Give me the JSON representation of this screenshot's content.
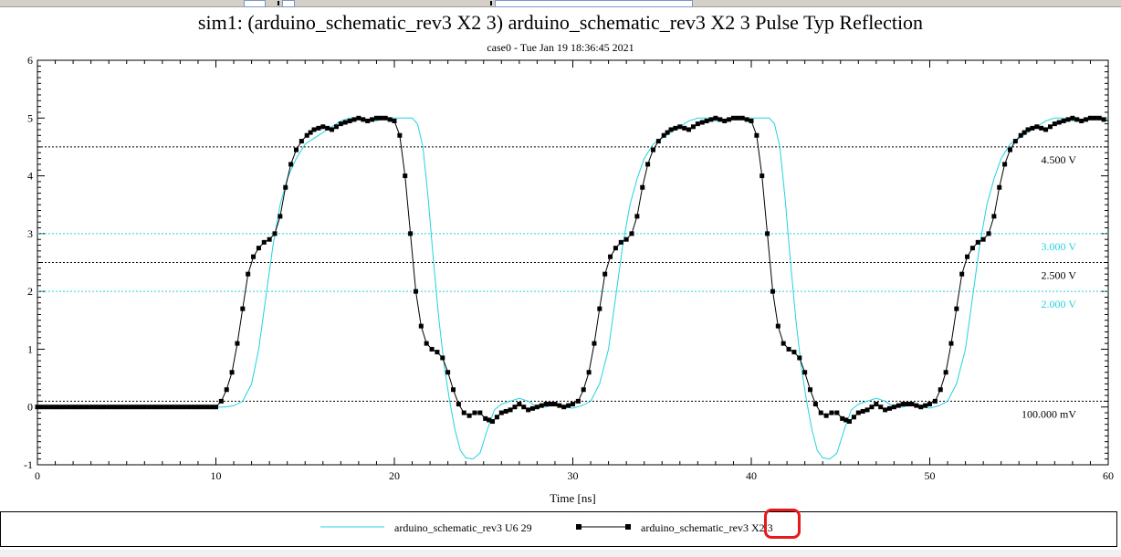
{
  "chart_data": {
    "type": "line",
    "title": "sim1: (arduino_schematic_rev3 X2 3) arduino_schematic_rev3 X2 3 Pulse Typ Reflection",
    "subtitle": "case0 - Tue Jan 19 18:36:45 2021",
    "xlabel": "Time [ns]",
    "ylabel": "",
    "xlim": [
      0,
      60
    ],
    "ylim": [
      -1,
      6
    ],
    "xticks": [
      0,
      10,
      20,
      30,
      40,
      50,
      60
    ],
    "yticks": [
      -1,
      0,
      1,
      2,
      3,
      4,
      5,
      6
    ],
    "grid": false,
    "legend_position": "bottom",
    "thresholds": [
      {
        "value": 4.5,
        "label": "4.500 V",
        "color": "#000000"
      },
      {
        "value": 3.0,
        "label": "3.000 V",
        "color": "#22d3e0"
      },
      {
        "value": 2.5,
        "label": "2.500 V",
        "color": "#000000"
      },
      {
        "value": 2.0,
        "label": "2.000 V",
        "color": "#22d3e0"
      },
      {
        "value": 0.1,
        "label": "100.000 mV",
        "color": "#000000"
      }
    ],
    "series": [
      {
        "name": "arduino_schematic_rev3 U6 29",
        "color": "#22d3e0",
        "marker": "none",
        "x": [
          0,
          10,
          10.5,
          11,
          11.5,
          12,
          12.4,
          12.8,
          13.2,
          13.6,
          14.0,
          14.5,
          15.0,
          15.5,
          16.0,
          16.5,
          17.0,
          17.5,
          18.0,
          18.5,
          19.0,
          19.5,
          20.0,
          20.5,
          21.0,
          21.3,
          21.6,
          21.9,
          22.2,
          22.5,
          22.8,
          23.1,
          23.4,
          23.7,
          24.0,
          24.4,
          24.8,
          25.2,
          25.6,
          26.0,
          26.5,
          27.0,
          27.5,
          28.0,
          28.5,
          29.0,
          29.5,
          30.0,
          30.5,
          31.0,
          31.5,
          32.0,
          32.4,
          32.8,
          33.2,
          33.6,
          34.0,
          34.5,
          35.0,
          35.5,
          36.0,
          36.5,
          37.0,
          37.5,
          38.0,
          38.5,
          39.0,
          39.5,
          40.0,
          40.5,
          41.0,
          41.3,
          41.6,
          41.9,
          42.2,
          42.5,
          42.8,
          43.1,
          43.4,
          43.7,
          44.0,
          44.4,
          44.8,
          45.2,
          45.6,
          46.0,
          46.5,
          47.0,
          47.5,
          48.0,
          48.5,
          49.0,
          49.5,
          50.0,
          50.5,
          51.0,
          51.5,
          52.0,
          52.4,
          52.8,
          53.2,
          53.6,
          54.0,
          54.5,
          55.0,
          55.5,
          56.0,
          56.5,
          57.0,
          57.5,
          58.0,
          58.5,
          59.0,
          59.5,
          60.0
        ],
        "y": [
          0,
          0,
          0,
          0.02,
          0.1,
          0.4,
          1.0,
          1.9,
          2.8,
          3.5,
          3.95,
          4.3,
          4.55,
          4.65,
          4.75,
          4.85,
          4.95,
          5.0,
          5.0,
          4.95,
          4.95,
          5.0,
          5.0,
          5.0,
          5.0,
          4.9,
          4.5,
          3.6,
          2.5,
          1.5,
          0.7,
          0.1,
          -0.4,
          -0.75,
          -0.88,
          -0.9,
          -0.8,
          -0.4,
          -0.05,
          0.05,
          0.1,
          0.15,
          0.1,
          0.0,
          0.0,
          0.05,
          0.0,
          -0.02,
          0.02,
          0.1,
          0.4,
          1.0,
          1.9,
          2.8,
          3.5,
          3.95,
          4.3,
          4.55,
          4.65,
          4.75,
          4.85,
          4.95,
          5.0,
          5.0,
          4.95,
          4.95,
          5.0,
          5.0,
          5.0,
          5.0,
          5.0,
          4.9,
          4.5,
          3.6,
          2.5,
          1.5,
          0.7,
          0.1,
          -0.4,
          -0.75,
          -0.88,
          -0.9,
          -0.8,
          -0.4,
          -0.05,
          0.05,
          0.1,
          0.15,
          0.1,
          0.0,
          0.0,
          0.05,
          0.0,
          -0.02,
          0.02,
          0.1,
          0.4,
          1.0,
          1.9,
          2.8,
          3.5,
          3.95,
          4.3,
          4.55,
          4.65,
          4.75,
          4.85,
          4.95,
          5.0,
          5.0,
          4.95,
          4.95,
          5.0,
          5.0,
          5.0
        ]
      },
      {
        "name": "arduino_schematic_rev3 X2 3",
        "color": "#000000",
        "marker": "square",
        "x": [
          0,
          10,
          10.3,
          10.6,
          10.9,
          11.2,
          11.5,
          11.8,
          12.1,
          12.4,
          12.7,
          13.0,
          13.3,
          13.6,
          13.9,
          14.2,
          14.5,
          14.8,
          15.1,
          15.5,
          16.0,
          16.5,
          17.0,
          17.5,
          18.0,
          18.5,
          19.0,
          19.5,
          20.0,
          20.3,
          20.6,
          20.9,
          21.2,
          21.5,
          21.8,
          22.1,
          22.4,
          22.7,
          23.0,
          23.3,
          23.6,
          23.9,
          24.2,
          24.5,
          24.8,
          25.1,
          25.5,
          26.0,
          26.5,
          27.0,
          27.5,
          28.0,
          28.5,
          29.0,
          29.5,
          30.0,
          30.3,
          30.6,
          30.9,
          31.2,
          31.5,
          31.8,
          32.1,
          32.4,
          32.7,
          33.0,
          33.3,
          33.6,
          33.9,
          34.2,
          34.5,
          34.8,
          35.1,
          35.5,
          36.0,
          36.5,
          37.0,
          37.5,
          38.0,
          38.5,
          39.0,
          39.5,
          40.0,
          40.3,
          40.6,
          40.9,
          41.2,
          41.5,
          41.8,
          42.1,
          42.4,
          42.7,
          43.0,
          43.3,
          43.6,
          43.9,
          44.2,
          44.5,
          44.8,
          45.1,
          45.5,
          46.0,
          46.5,
          47.0,
          47.5,
          48.0,
          48.5,
          49.0,
          49.5,
          50.0,
          50.3,
          50.6,
          50.9,
          51.2,
          51.5,
          51.8,
          52.1,
          52.4,
          52.7,
          53.0,
          53.3,
          53.6,
          53.9,
          54.2,
          54.5,
          54.8,
          55.1,
          55.5,
          56.0,
          56.5,
          57.0,
          57.5,
          58.0,
          58.5,
          59.0,
          59.5,
          60.0
        ],
        "y": [
          0,
          0,
          0.1,
          0.3,
          0.6,
          1.1,
          1.7,
          2.3,
          2.6,
          2.75,
          2.85,
          2.9,
          3.0,
          3.3,
          3.8,
          4.2,
          4.45,
          4.6,
          4.7,
          4.8,
          4.85,
          4.8,
          4.9,
          4.95,
          5.0,
          4.95,
          5.0,
          5.0,
          4.95,
          4.7,
          4.0,
          3.0,
          2.0,
          1.4,
          1.1,
          1.0,
          0.95,
          0.85,
          0.6,
          0.3,
          0.05,
          -0.1,
          -0.15,
          -0.1,
          -0.1,
          -0.2,
          -0.25,
          -0.1,
          -0.05,
          0.05,
          -0.05,
          0.0,
          0.05,
          0.05,
          0.0,
          0.05,
          0.1,
          0.3,
          0.6,
          1.1,
          1.7,
          2.3,
          2.6,
          2.75,
          2.85,
          2.9,
          3.0,
          3.3,
          3.8,
          4.2,
          4.45,
          4.6,
          4.7,
          4.8,
          4.85,
          4.8,
          4.9,
          4.95,
          5.0,
          4.95,
          5.0,
          5.0,
          4.95,
          4.7,
          4.0,
          3.0,
          2.0,
          1.4,
          1.1,
          1.0,
          0.95,
          0.85,
          0.6,
          0.3,
          0.05,
          -0.1,
          -0.15,
          -0.1,
          -0.1,
          -0.2,
          -0.25,
          -0.1,
          -0.05,
          0.05,
          -0.05,
          0.0,
          0.05,
          0.05,
          0.0,
          0.05,
          0.1,
          0.3,
          0.6,
          1.1,
          1.7,
          2.3,
          2.6,
          2.75,
          2.85,
          2.9,
          3.0,
          3.3,
          3.8,
          4.2,
          4.45,
          4.6,
          4.7,
          4.8,
          4.85,
          4.8,
          4.9,
          4.95,
          5.0,
          4.95,
          5.0,
          5.0,
          4.95
        ]
      }
    ]
  },
  "legend": {
    "items": [
      {
        "label": "arduino_schematic_rev3 U6 29",
        "color": "#22d3e0"
      },
      {
        "label": "arduino_schematic_rev3 X2 3",
        "color": "#000000"
      }
    ]
  },
  "annotation": {
    "color": "#e8191a"
  }
}
